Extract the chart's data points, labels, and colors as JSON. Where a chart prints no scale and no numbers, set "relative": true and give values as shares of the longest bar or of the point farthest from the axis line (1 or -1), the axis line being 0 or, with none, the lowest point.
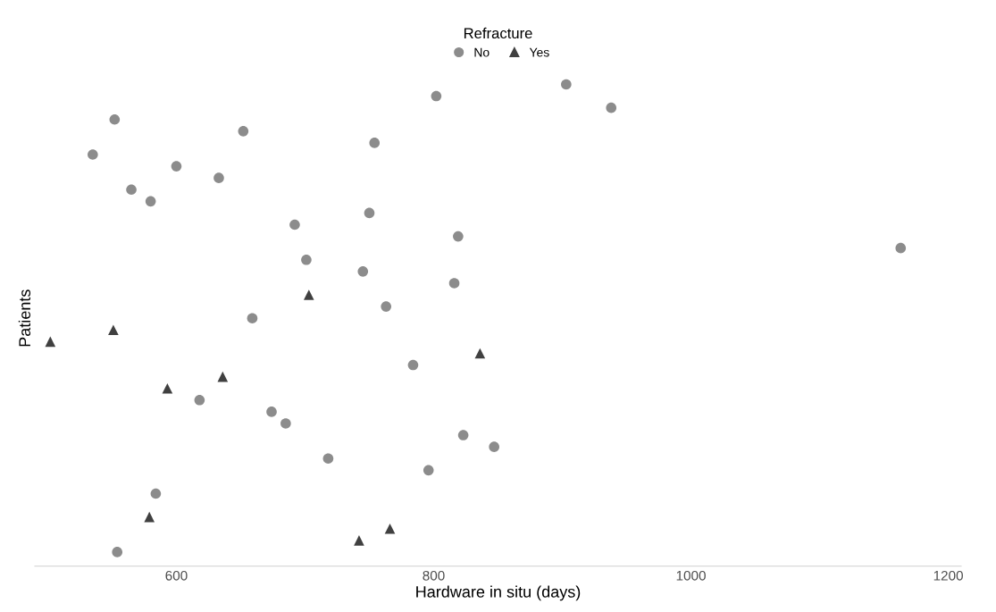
{
  "chart_data": {
    "type": "scatter",
    "relative": true,
    "xlabel": "Hardware in situ (days)",
    "ylabel": "Patients",
    "legend_title": "Refracture",
    "legend": "top",
    "tick_labels": "x",
    "xlim": [
      490,
      1210
    ],
    "xticks": [
      600,
      800,
      1000,
      1200
    ],
    "series": [
      {
        "name": "No",
        "color": "#8c8c8c",
        "marker": "circle",
        "x": [
          903,
          802,
          938,
          552,
          652,
          754,
          535,
          600,
          633,
          565,
          580,
          750,
          692,
          819,
          1163,
          701,
          745,
          816,
          763,
          659,
          784,
          618,
          674,
          685,
          823,
          847,
          718,
          796,
          584,
          554
        ],
        "values": [
          1.0,
          0.975,
          0.95,
          0.925,
          0.9,
          0.875,
          0.85,
          0.825,
          0.8,
          0.775,
          0.75,
          0.725,
          0.7,
          0.675,
          0.65,
          0.625,
          0.6,
          0.575,
          0.525,
          0.5,
          0.4,
          0.325,
          0.3,
          0.275,
          0.25,
          0.225,
          0.2,
          0.175,
          0.125,
          0.0
        ]
      },
      {
        "name": "Yes",
        "color": "#404040",
        "marker": "triangle",
        "x": [
          703,
          551,
          502,
          836,
          636,
          593,
          579,
          766,
          742
        ],
        "values": [
          0.55,
          0.475,
          0.45,
          0.425,
          0.375,
          0.35,
          0.075,
          0.05,
          0.025
        ]
      }
    ]
  }
}
